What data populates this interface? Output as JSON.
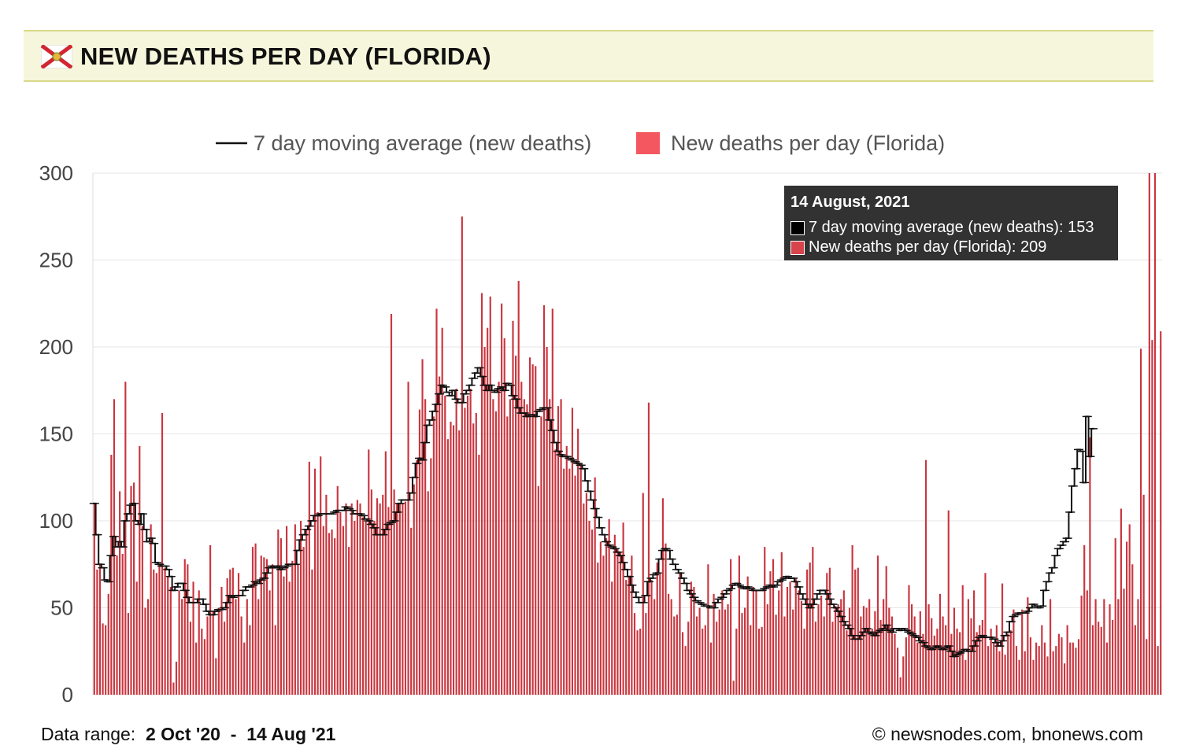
{
  "header": {
    "title": "NEW DEATHS PER DAY (FLORIDA)",
    "flag_icon": "florida-flag-icon"
  },
  "footer": {
    "range_label": "Data range:",
    "range_start": "2 Oct '20",
    "range_sep": "-",
    "range_end": "14 Aug '21",
    "credit": "© newsnodes.com, bnonews.com"
  },
  "tooltip": {
    "date": "14 August, 2021",
    "avg_line": "7 day moving average (new deaths): 153",
    "daily_line": "New deaths per day (Florida): 209"
  },
  "colors": {
    "bar": "#c9363f",
    "bar_legend": "#f4575f",
    "line": "#111111",
    "grid": "#e6e6e6"
  },
  "chart_data": {
    "type": "bar",
    "title": "NEW DEATHS PER DAY (FLORIDA)",
    "legend": [
      "7 day moving average (new deaths)",
      "New deaths per day (Florida)"
    ],
    "legend_position": "top-center",
    "x_start": "2 Oct '20",
    "x_end": "14 Aug '21",
    "ylim": [
      0,
      300
    ],
    "yticks": [
      0,
      50,
      100,
      150,
      200,
      250,
      300
    ],
    "grid": true,
    "series": [
      {
        "name": "New deaths per day (Florida)",
        "type": "bar",
        "values": [
          110,
          72,
          75,
          41,
          40,
          58,
          138,
          170,
          80,
          117,
          81,
          180,
          47,
          120,
          122,
          65,
          143,
          97,
          50,
          55,
          98,
          72,
          70,
          75,
          162,
          73,
          68,
          62,
          7,
          19,
          60,
          55,
          78,
          75,
          42,
          65,
          30,
          60,
          38,
          32,
          45,
          86,
          48,
          21,
          50,
          62,
          42,
          67,
          72,
          73,
          55,
          70,
          45,
          30,
          55,
          40,
          85,
          87,
          55,
          80,
          79,
          78,
          60,
          75,
          40,
          95,
          90,
          68,
          97,
          65,
          77,
          98,
          75,
          100,
          85,
          95,
          134,
          72,
          130,
          105,
          137,
          97,
          115,
          93,
          95,
          90,
          120,
          105,
          97,
          110,
          85,
          110,
          100,
          112,
          110,
          102,
          100,
          141,
          118,
          100,
          113,
          110,
          115,
          140,
          108,
          219,
          118,
          110,
          110,
          110,
          111,
          180,
          96,
          121,
          135,
          164,
          193,
          170,
          117,
          136,
          160,
          222,
          183,
          211,
          172,
          147,
          157,
          155,
          176,
          152,
          275,
          165,
          172,
          176,
          156,
          162,
          138,
          231,
          200,
          211,
          229,
          170,
          163,
          180,
          225,
          205,
          160,
          170,
          215,
          195,
          238,
          180,
          170,
          167,
          194,
          190,
          189,
          120,
          160,
          224,
          200,
          170,
          222,
          141,
          166,
          170,
          130,
          143,
          130,
          165,
          126,
          153,
          133,
          110,
          116,
          100,
          95,
          125,
          76,
          88,
          80,
          90,
          101,
          65,
          92,
          84,
          82,
          99,
          66,
          68,
          80,
          47,
          37,
          38,
          116,
          47,
          168,
          66,
          55,
          76,
          70,
          113,
          87,
          58,
          55,
          45,
          46,
          70,
          36,
          28,
          42,
          65,
          62,
          45,
          50,
          38,
          40,
          75,
          30,
          58,
          42,
          49,
          60,
          49,
          52,
          78,
          8,
          38,
          80,
          47,
          50,
          68,
          40,
          62,
          60,
          38,
          39,
          85,
          52,
          71,
          78,
          46,
          60,
          82,
          45,
          62,
          65,
          49,
          67,
          60,
          54,
          38,
          72,
          76,
          85,
          42,
          52,
          57,
          45,
          70,
          73,
          42,
          51,
          52,
          55,
          60,
          37,
          50,
          86,
          72,
          73,
          45,
          51,
          50,
          55,
          38,
          48,
          80,
          43,
          55,
          74,
          50,
          45,
          35,
          27,
          10,
          22,
          33,
          63,
          52,
          45,
          30,
          48,
          35,
          135,
          52,
          44,
          34,
          38,
          58,
          45,
          40,
          106,
          35,
          50,
          38,
          36,
          63,
          20,
          55,
          44,
          60,
          36,
          40,
          43,
          70,
          28,
          38,
          30,
          40,
          25,
          64,
          23,
          35,
          37,
          49,
          28,
          20,
          49,
          25,
          56,
          33,
          20,
          30,
          28,
          40,
          30,
          22,
          55,
          25,
          28,
          35,
          33,
          18,
          40,
          30,
          30,
          27,
          32,
          57,
          86,
          60,
          148,
          40,
          55,
          42,
          39,
          55,
          30,
          52,
          43,
          90,
          55,
          107,
          61,
          88,
          98,
          75,
          40,
          55,
          199,
          115,
          32,
          300,
          204,
          300,
          28,
          209
        ]
      },
      {
        "name": "7 day moving average (new deaths)",
        "type": "line",
        "values": [
          110,
          92,
          75,
          73,
          66,
          65,
          80,
          91,
          85,
          88,
          85,
          100,
          104,
          109,
          110,
          100,
          98,
          104,
          95,
          88,
          90,
          87,
          76,
          75,
          74,
          74,
          72,
          68,
          60,
          62,
          64,
          64,
          60,
          56,
          53,
          53,
          53,
          55,
          55,
          52,
          48,
          46,
          46,
          48,
          49,
          49,
          50,
          53,
          57,
          56,
          57,
          57,
          57,
          60,
          62,
          62,
          63,
          65,
          64,
          66,
          67,
          70,
          73,
          74,
          73,
          74,
          72,
          73,
          74,
          75,
          75,
          75,
          83,
          89,
          92,
          95,
          97,
          100,
          103,
          103,
          104,
          104,
          104,
          104,
          104,
          105,
          106,
          106,
          106,
          108,
          107,
          106,
          104,
          104,
          104,
          103,
          101,
          100,
          98,
          96,
          92,
          92,
          92,
          95,
          98,
          99,
          100,
          105,
          110,
          112,
          112,
          112,
          116,
          125,
          133,
          136,
          135,
          145,
          155,
          158,
          163,
          167,
          173,
          178,
          177,
          174,
          172,
          175,
          170,
          168,
          168,
          173,
          175,
          178,
          182,
          185,
          188,
          183,
          178,
          175,
          178,
          175,
          174,
          176,
          177,
          175,
          179,
          178,
          172,
          170,
          165,
          162,
          162,
          160,
          161,
          161,
          160,
          163,
          164,
          165,
          165,
          158,
          152,
          145,
          140,
          138,
          137,
          137,
          136,
          135,
          134,
          133,
          132,
          130,
          123,
          117,
          112,
          107,
          102,
          96,
          92,
          88,
          86,
          85,
          84,
          82,
          80,
          76,
          72,
          68,
          63,
          59,
          56,
          53,
          53,
          57,
          65,
          67,
          69,
          70,
          78,
          83,
          84,
          83,
          78,
          75,
          72,
          70,
          67,
          64,
          60,
          58,
          56,
          54,
          53,
          52,
          51,
          51,
          50,
          50,
          53,
          55,
          56,
          58,
          60,
          61,
          63,
          64,
          63,
          62,
          61,
          62,
          61,
          60,
          60,
          60,
          60,
          61,
          62,
          63,
          62,
          63,
          65,
          66,
          67,
          68,
          67,
          67,
          65,
          62,
          58,
          55,
          52,
          50,
          52,
          55,
          58,
          60,
          60,
          58,
          55,
          52,
          50,
          48,
          45,
          42,
          40,
          38,
          34,
          32,
          32,
          34,
          36,
          38,
          36,
          35,
          34,
          36,
          37,
          38,
          40,
          37,
          36,
          38,
          38,
          37,
          38,
          37,
          36,
          35,
          34,
          33,
          31,
          30,
          28,
          27,
          26,
          27,
          28,
          27,
          26,
          27,
          28,
          25,
          22,
          23,
          24,
          25,
          26,
          25,
          25,
          28,
          31,
          33,
          34,
          33,
          33,
          33,
          32,
          30,
          28,
          31,
          34,
          36,
          42,
          45,
          46,
          47,
          47,
          47,
          48,
          50,
          52,
          51,
          50,
          51,
          60,
          65,
          70,
          73,
          80,
          84,
          86,
          88,
          90,
          105,
          120,
          130,
          141,
          140,
          122,
          160,
          137,
          153
        ]
      }
    ]
  }
}
